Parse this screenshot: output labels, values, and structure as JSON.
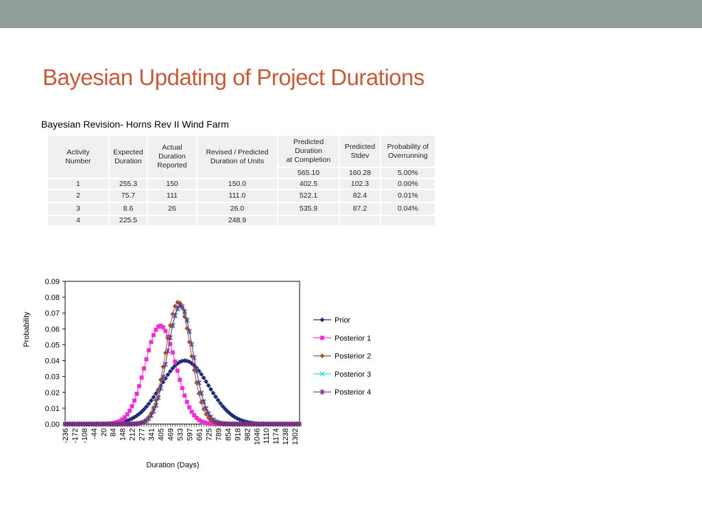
{
  "slide": {
    "title": "Bayesian Updating of Project Durations",
    "table_caption": "Bayesian Revision- Horns Rev II Wind Farm"
  },
  "table": {
    "headers": [
      "Activity\nNumber",
      "Expected\nDuration",
      "Actual\nDuration\nReported",
      "Revised / Predicted\nDuration of Units",
      "Predicted\nDuration\nat Completion",
      "Predicted\nStdev",
      "Probability of\nOverrunning"
    ],
    "summary": [
      "565.10",
      "160.28",
      "5.00%"
    ],
    "rows": [
      [
        "1",
        "255.3",
        "150",
        "150.0",
        "402.5",
        "102.3",
        "0.00%"
      ],
      [
        "2",
        "75.7",
        "111",
        "111.0",
        "522.1",
        "82.4",
        "0.01%"
      ],
      [
        "3",
        "8.6",
        "26",
        "26.0",
        "535.9",
        "87.2",
        "0.04%"
      ],
      [
        "4",
        "225.5",
        "",
        "248.9",
        "",
        "",
        ""
      ]
    ]
  },
  "chart_data": {
    "type": "line",
    "xlabel": "Duration (Days)",
    "ylabel": "Probability",
    "ylim": [
      0,
      0.09
    ],
    "yticks": [
      "0.00",
      "0.01",
      "0.02",
      "0.03",
      "0.04",
      "0.05",
      "0.06",
      "0.07",
      "0.08",
      "0.09"
    ],
    "x_tick_labels": [
      "-236",
      "-172",
      "-108",
      "-44",
      "20",
      "84",
      "148",
      "212",
      "277",
      "341",
      "405",
      "469",
      "533",
      "597",
      "661",
      "725",
      "789",
      "854",
      "918",
      "982",
      "1046",
      "1110",
      "1174",
      "1238",
      "1302"
    ],
    "x_range": [
      -236,
      1334
    ],
    "x_step": 16,
    "legend_position": "right",
    "grid": false,
    "series": [
      {
        "name": "Prior",
        "color": "#1F2A78",
        "marker": "diamond",
        "peak_x": 565,
        "peak_y": 0.04
      },
      {
        "name": "Posterior 1",
        "color": "#F22ED2",
        "marker": "square",
        "peak_x": 402,
        "peak_y": 0.062
      },
      {
        "name": "Posterior 2",
        "color": "#A0522D",
        "marker": "diamond",
        "peak_x": 522,
        "peak_y": 0.077
      },
      {
        "name": "Posterior 3",
        "color": "#3FD8E6",
        "marker": "x",
        "peak_x": 536,
        "peak_y": 0.074
      },
      {
        "name": "Posterior 4",
        "color": "#7A2A7A",
        "marker": "star",
        "peak_x": 536,
        "peak_y": 0.075
      }
    ]
  }
}
